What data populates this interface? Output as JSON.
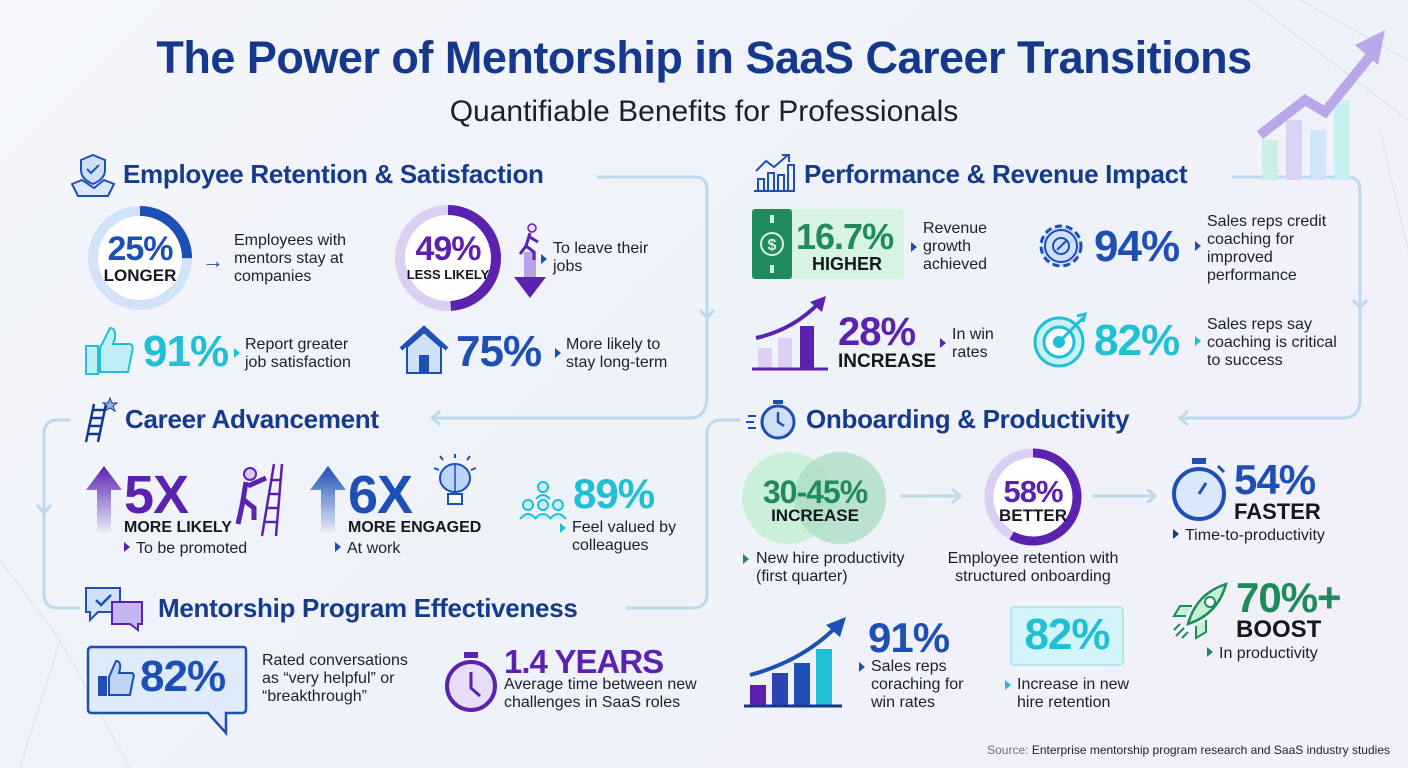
{
  "header": {
    "title": "The Power of Mentorship in SaaS Career Transitions",
    "subtitle": "Quantifiable Benefits for Professionals"
  },
  "colors": {
    "navy": "#163a8c",
    "blue": "#1e4fb5",
    "purple": "#5b22b0",
    "teal": "#1fbfd6",
    "green": "#1f8a5b",
    "connector": "#bcd9f0"
  },
  "retention": {
    "title": "Employee Retention & Satisfaction",
    "icon": "handshake-shield-icon",
    "stat1": {
      "value": "25%",
      "label": "LONGER",
      "desc": "Employees with mentors stay at companies",
      "fill": 0.25
    },
    "stat2": {
      "value": "49%",
      "label": "LESS LIKELY",
      "desc": "To leave their jobs",
      "fill": 0.49
    },
    "stat3": {
      "value": "91%",
      "desc": "Report greater job satisfaction",
      "icon": "thumbs-up-icon"
    },
    "stat4": {
      "value": "75%",
      "desc": "More likely to stay long-term",
      "icon": "house-icon"
    }
  },
  "performance": {
    "title": "Performance & Revenue Impact",
    "icon": "bar-chart-growth-icon",
    "stat1": {
      "value": "16.7%",
      "label": "HIGHER",
      "desc": "Revenue growth achieved",
      "icon": "dollar-bill-icon"
    },
    "stat2": {
      "value": "94%",
      "desc": "Sales reps credit coaching for improved performance",
      "icon": "gear-icon"
    },
    "stat3": {
      "value": "28%",
      "label": "INCREASE",
      "desc": "In win rates",
      "icon": "growth-chart-icon"
    },
    "stat4": {
      "value": "82%",
      "desc": "Sales reps say coaching is critical to success",
      "icon": "target-icon"
    }
  },
  "career": {
    "title": "Career Advancement",
    "icon": "ladder-star-icon",
    "stat1": {
      "value": "5X",
      "label": "MORE LIKELY",
      "desc": "To be promoted",
      "icon": "climber-icon"
    },
    "stat2": {
      "value": "6X",
      "label": "MORE ENGAGED",
      "desc": "At work",
      "icon": "brain-bulb-icon"
    },
    "stat3": {
      "value": "89%",
      "desc": "Feel valued by colleagues",
      "icon": "team-icon"
    }
  },
  "program": {
    "title": "Mentorship Program Effectiveness",
    "icon": "chat-check-icon",
    "stat1": {
      "value": "82%",
      "desc": "Rated conversations as “very helpful” or “breakthrough”",
      "icon": "thumbs-up-icon"
    },
    "stat2": {
      "value": "1.4 YEARS",
      "desc": "Average time between new challenges in SaaS roles",
      "icon": "stopwatch-icon"
    }
  },
  "onboarding": {
    "title": "Onboarding & Productivity",
    "icon": "stopwatch-icon",
    "stat1": {
      "value": "30-45%",
      "label": "INCREASE",
      "desc": "New hire productivity (first quarter)"
    },
    "stat2": {
      "value": "58%",
      "label": "BETTER",
      "desc": "Employee retention with structured onboarding",
      "fill": 0.58
    },
    "stat3": {
      "value": "54%",
      "label": "FASTER",
      "desc": "Time-to-productivity",
      "icon": "stopwatch-icon"
    },
    "stat4": {
      "value": "91%",
      "desc": "Sales reps coraching for win rates",
      "icon": "bar-chart-icon"
    },
    "stat5": {
      "value": "82%",
      "desc": "Increase in new hire retention"
    },
    "stat6": {
      "value": "70%+",
      "label": "BOOST",
      "desc": "In productivity",
      "icon": "rocket-icon"
    }
  },
  "footer": {
    "source_label": "Source:",
    "source_text": "Enterprise mentorship program research and SaaS industry studies"
  }
}
